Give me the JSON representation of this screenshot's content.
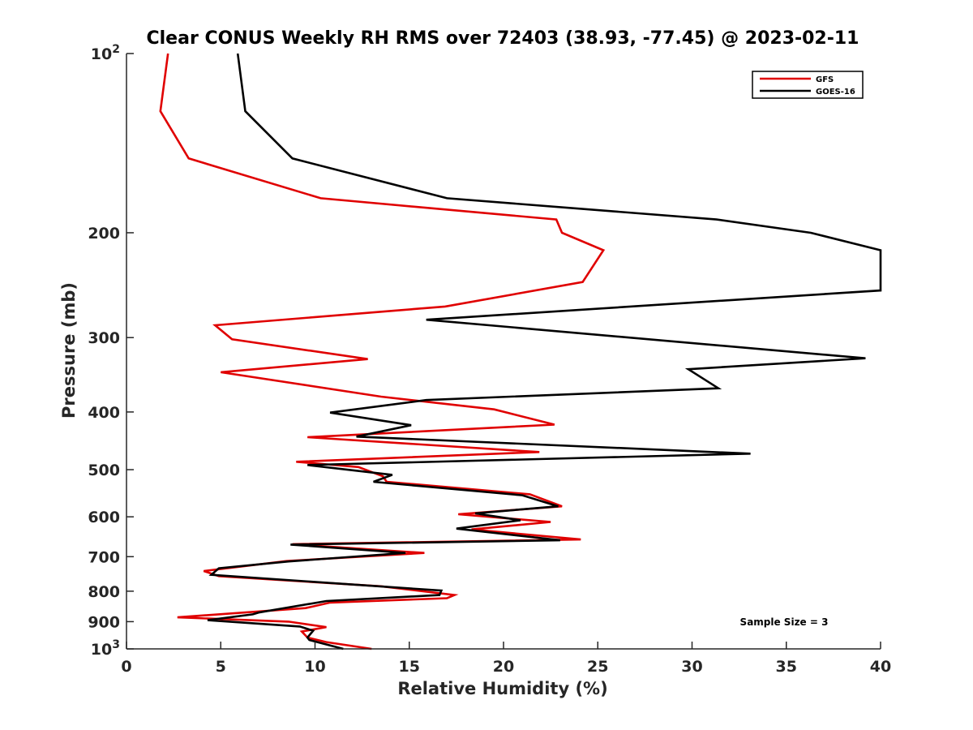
{
  "chart_data": {
    "type": "line",
    "title": "Clear CONUS Weekly RH RMS over 72403 (38.93, -77.45) @ 2023-02-11",
    "xlabel": "Relative Humidity (%)",
    "ylabel": "Pressure (mb)",
    "xlim": [
      0,
      40
    ],
    "ylim": [
      100,
      1000
    ],
    "y_scale": "log",
    "y_reversed": true,
    "xticks": [
      0,
      5,
      10,
      15,
      20,
      25,
      30,
      35,
      40
    ],
    "xtick_labels": [
      "0",
      "5",
      "10",
      "15",
      "20",
      "25",
      "30",
      "35",
      "40"
    ],
    "yticks": [
      100,
      200,
      300,
      400,
      500,
      600,
      700,
      800,
      900,
      1000
    ],
    "ytick_labels": [
      {
        "base": "10",
        "exp": "2"
      },
      {
        "base": "200",
        "exp": ""
      },
      {
        "base": "300",
        "exp": ""
      },
      {
        "base": "400",
        "exp": ""
      },
      {
        "base": "500",
        "exp": ""
      },
      {
        "base": "600",
        "exp": ""
      },
      {
        "base": "700",
        "exp": ""
      },
      {
        "base": "800",
        "exp": ""
      },
      {
        "base": "900",
        "exp": ""
      },
      {
        "base": "10",
        "exp": "3"
      }
    ],
    "grid": false,
    "legend_position": "top-right",
    "annotation": "Sample Size = 3",
    "series": [
      {
        "name": "GFS",
        "color": "#e00000",
        "points": [
          [
            2.2,
            100
          ],
          [
            1.8,
            125
          ],
          [
            3.3,
            150
          ],
          [
            10.3,
            175
          ],
          [
            22.8,
            190
          ],
          [
            23.1,
            200
          ],
          [
            25.3,
            214
          ],
          [
            24.2,
            242
          ],
          [
            16.9,
            266
          ],
          [
            4.7,
            286
          ],
          [
            5.6,
            302
          ],
          [
            12.8,
            326
          ],
          [
            5.0,
            343
          ],
          [
            13.5,
            377
          ],
          [
            19.5,
            396
          ],
          [
            22.7,
            420
          ],
          [
            9.6,
            441
          ],
          [
            21.9,
            467
          ],
          [
            9.0,
            485
          ],
          [
            12.3,
            495
          ],
          [
            13.6,
            513
          ],
          [
            13.8,
            524
          ],
          [
            21.4,
            550
          ],
          [
            23.1,
            576
          ],
          [
            17.6,
            594
          ],
          [
            22.5,
            612
          ],
          [
            18.3,
            630
          ],
          [
            24.1,
            655
          ],
          [
            8.8,
            667
          ],
          [
            15.8,
            690
          ],
          [
            8.5,
            712
          ],
          [
            4.1,
            740
          ],
          [
            4.9,
            755
          ],
          [
            13.5,
            785
          ],
          [
            17.4,
            812
          ],
          [
            17.0,
            822
          ],
          [
            10.8,
            836
          ],
          [
            9.5,
            854
          ],
          [
            2.7,
            885
          ],
          [
            8.6,
            900
          ],
          [
            10.6,
            919
          ],
          [
            9.3,
            935
          ],
          [
            9.6,
            957
          ],
          [
            10.6,
            974
          ],
          [
            13.0,
            1000
          ]
        ]
      },
      {
        "name": "GOES-16",
        "color": "#000000",
        "points": [
          [
            5.9,
            100
          ],
          [
            6.3,
            125
          ],
          [
            8.8,
            150
          ],
          [
            17.0,
            175
          ],
          [
            31.3,
            190
          ],
          [
            36.3,
            200
          ],
          [
            40.0,
            214
          ],
          [
            40.0,
            250
          ],
          [
            15.9,
            280
          ],
          [
            39.2,
            325
          ],
          [
            29.8,
            339
          ],
          [
            31.4,
            365
          ],
          [
            15.9,
            382
          ],
          [
            10.8,
            401
          ],
          [
            15.1,
            421
          ],
          [
            12.2,
            440
          ],
          [
            33.1,
            470
          ],
          [
            9.6,
            491
          ],
          [
            14.1,
            510
          ],
          [
            13.1,
            524
          ],
          [
            21.0,
            552
          ],
          [
            22.9,
            576
          ],
          [
            18.5,
            592
          ],
          [
            20.9,
            608
          ],
          [
            17.5,
            628
          ],
          [
            23.0,
            657
          ],
          [
            8.7,
            668
          ],
          [
            14.8,
            690
          ],
          [
            8.6,
            713
          ],
          [
            4.9,
            732
          ],
          [
            4.5,
            751
          ],
          [
            16.7,
            798
          ],
          [
            16.6,
            812
          ],
          [
            10.6,
            831
          ],
          [
            7.0,
            869
          ],
          [
            6.7,
            875
          ],
          [
            4.3,
            895
          ],
          [
            9.2,
            917
          ],
          [
            9.9,
            932
          ],
          [
            9.6,
            957
          ],
          [
            9.7,
            966
          ],
          [
            11.5,
            1000
          ]
        ]
      }
    ]
  }
}
